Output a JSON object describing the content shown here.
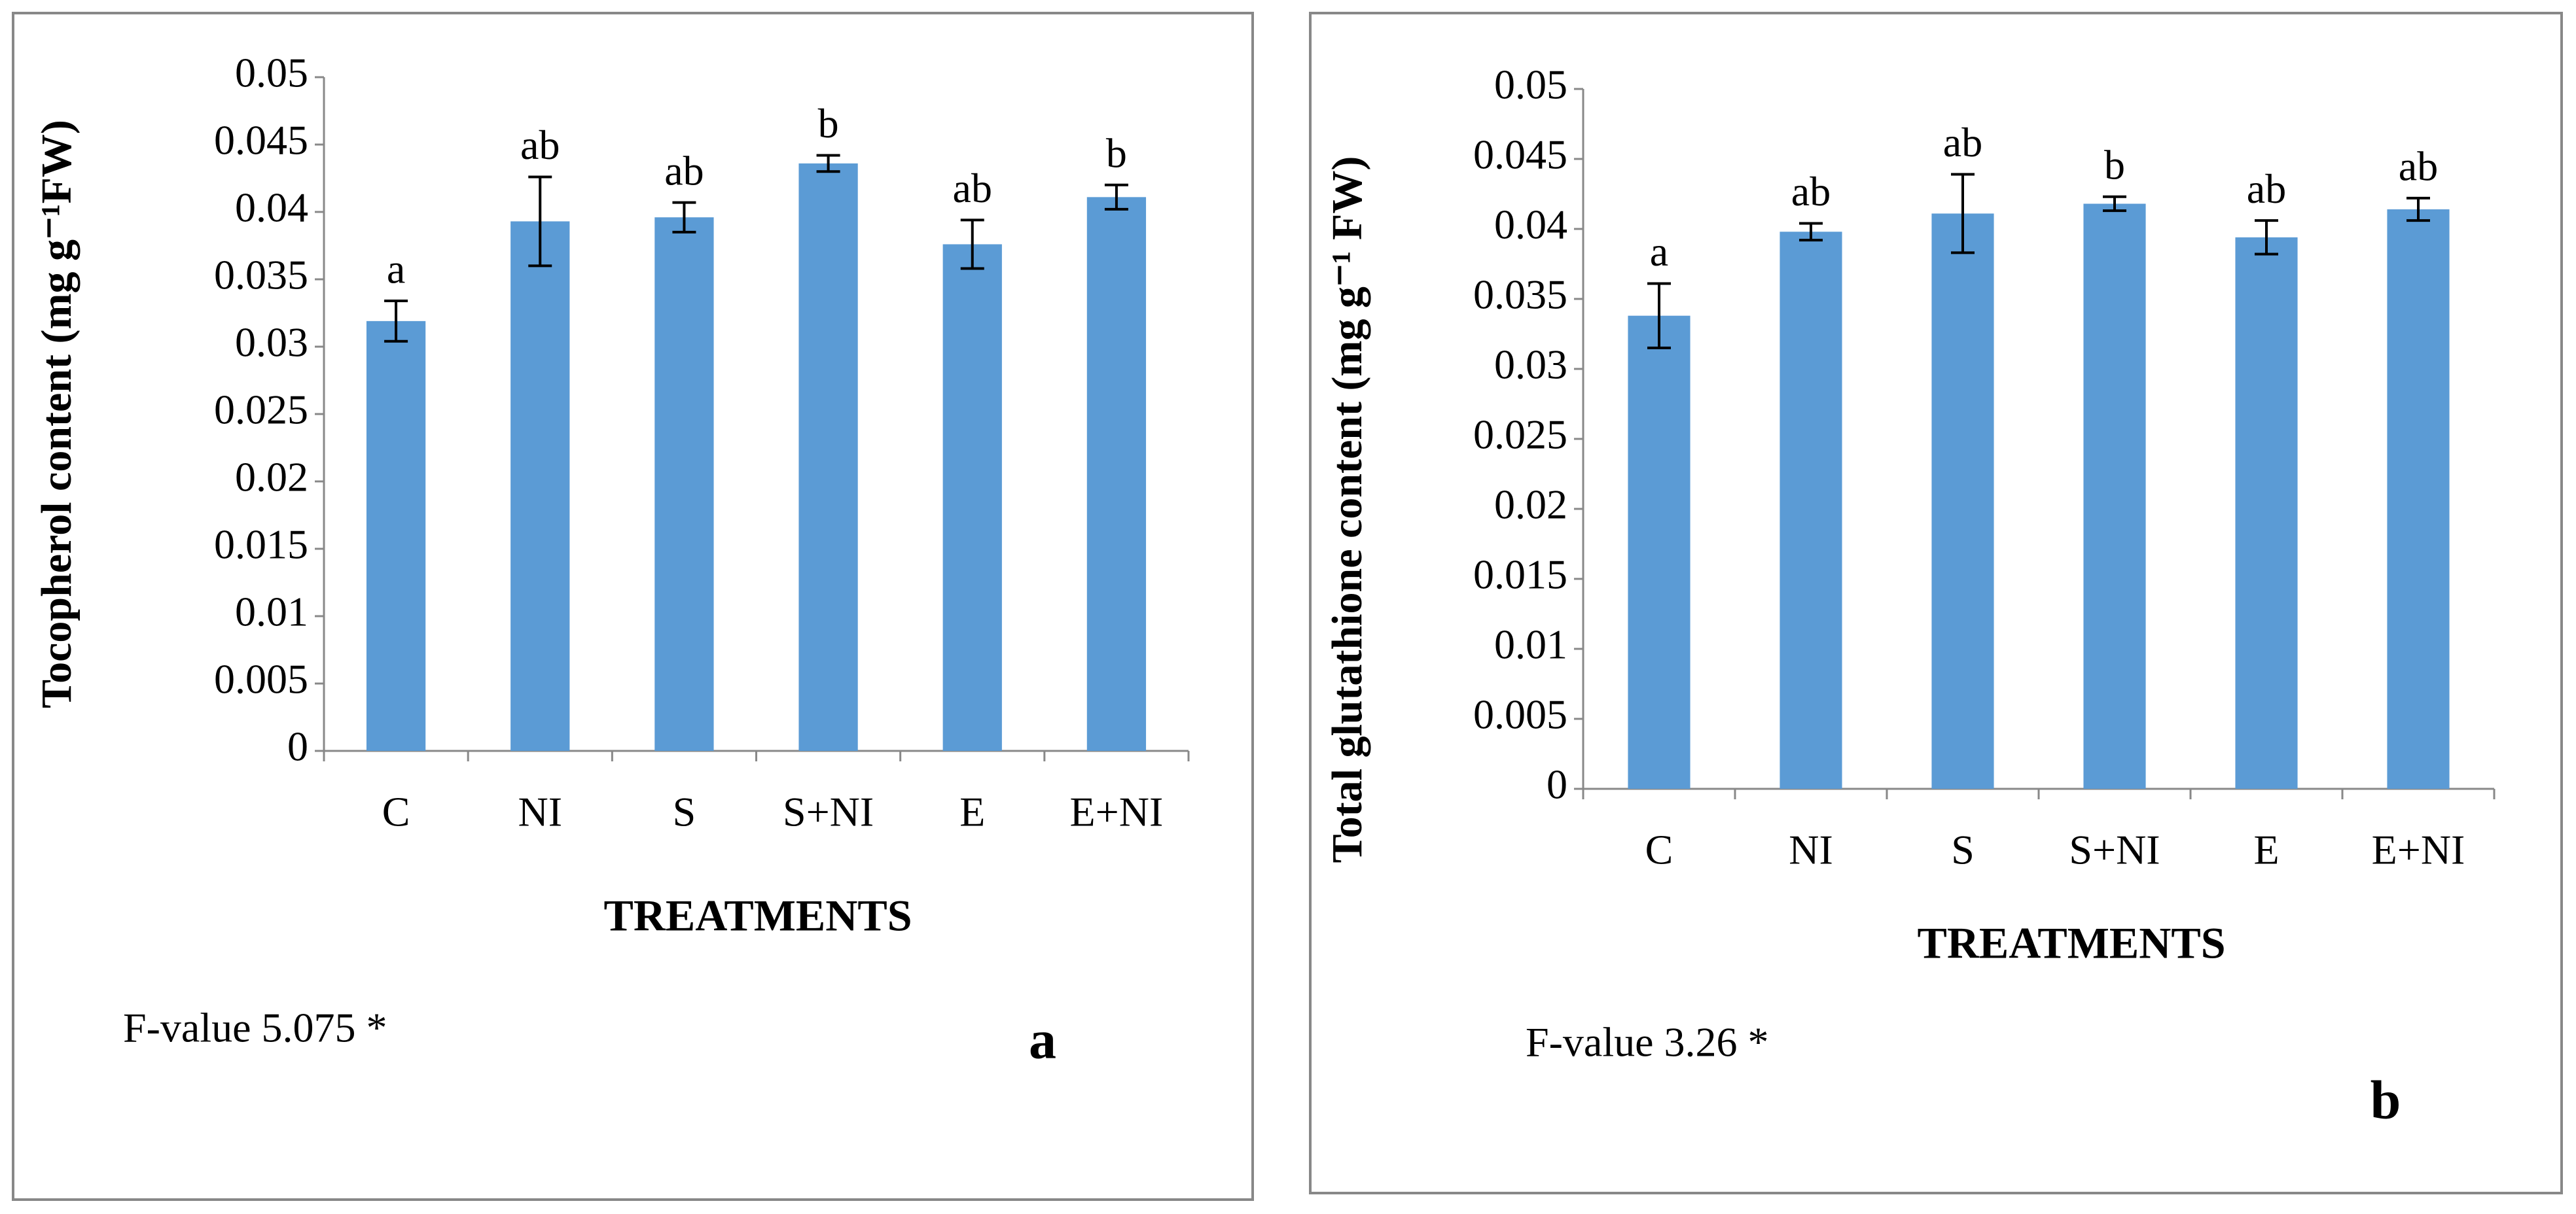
{
  "chart_data": [
    {
      "type": "bar",
      "y_label": "Tocopherol content (mg g⁻¹FW)",
      "x_label": "TREATMENTS",
      "categories": [
        "C",
        "NI",
        "S",
        "S+NI",
        "E",
        "E+NI"
      ],
      "values": [
        0.0319,
        0.0393,
        0.0396,
        0.0436,
        0.0376,
        0.0411
      ],
      "errors": [
        0.0015,
        0.0033,
        0.0011,
        0.0006,
        0.0018,
        0.0009
      ],
      "annotations": [
        "a",
        "ab",
        "ab",
        "b",
        "ab",
        "b"
      ],
      "color": "#5b9bd5",
      "ylim": [
        0,
        0.05
      ],
      "yticks": [
        0,
        0.005,
        0.01,
        0.015,
        0.02,
        0.025,
        0.03,
        0.035,
        0.04,
        0.045,
        0.05
      ],
      "note": "F-value 5.075 *",
      "panel_label": "a"
    },
    {
      "type": "bar",
      "y_label": "Total glutathione content (mg g⁻¹ FW)",
      "x_label": "TREATMENTS",
      "categories": [
        "C",
        "NI",
        "S",
        "S+NI",
        "E",
        "E+NI"
      ],
      "values": [
        0.0338,
        0.0398,
        0.0411,
        0.0418,
        0.0394,
        0.0414
      ],
      "errors": [
        0.0023,
        0.0006,
        0.0028,
        0.0005,
        0.0012,
        0.0008
      ],
      "annotations": [
        "a",
        "ab",
        "ab",
        "b",
        "ab",
        "ab"
      ],
      "color": "#5b9bd5",
      "ylim": [
        0,
        0.05
      ],
      "yticks": [
        0,
        0.005,
        0.01,
        0.015,
        0.02,
        0.025,
        0.03,
        0.035,
        0.04,
        0.045,
        0.05
      ],
      "note": "F-value 3.26 *",
      "panel_label": "b"
    }
  ]
}
